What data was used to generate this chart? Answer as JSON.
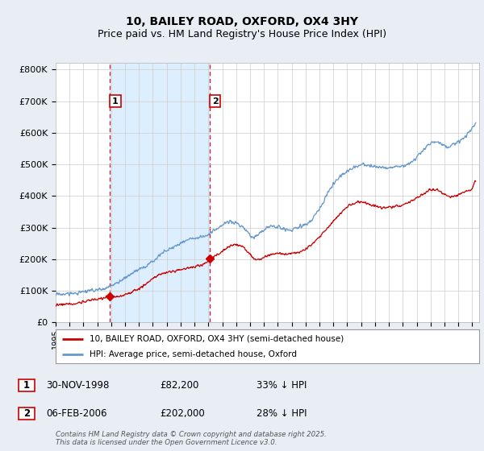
{
  "title": "10, BAILEY ROAD, OXFORD, OX4 3HY",
  "subtitle": "Price paid vs. HM Land Registry's House Price Index (HPI)",
  "title_fontsize": 10,
  "subtitle_fontsize": 9,
  "background_color": "#e8eef4",
  "plot_background": "#ffffff",
  "grid_color": "#cccccc",
  "red_line_color": "#cc0000",
  "blue_line_color": "#6699cc",
  "shade_color": "#ddeeff",
  "ylabel_ticks": [
    "£0",
    "£100K",
    "£200K",
    "£300K",
    "£400K",
    "£500K",
    "£600K",
    "£700K",
    "£800K"
  ],
  "ytick_values": [
    0,
    100000,
    200000,
    300000,
    400000,
    500000,
    600000,
    700000,
    800000
  ],
  "ylim": [
    0,
    820000
  ],
  "xlim_start": 1995.0,
  "xlim_end": 2025.5,
  "transaction1_x": 1998.92,
  "transaction1_y": 82200,
  "transaction1_label": "1",
  "transaction1_date": "30-NOV-1998",
  "transaction1_price": "£82,200",
  "transaction1_hpi": "33% ↓ HPI",
  "transaction2_x": 2006.1,
  "transaction2_y": 202000,
  "transaction2_label": "2",
  "transaction2_date": "06-FEB-2006",
  "transaction2_price": "£202,000",
  "transaction2_hpi": "28% ↓ HPI",
  "legend_line1": "10, BAILEY ROAD, OXFORD, OX4 3HY (semi-detached house)",
  "legend_line2": "HPI: Average price, semi-detached house, Oxford",
  "footer": "Contains HM Land Registry data © Crown copyright and database right 2025.\nThis data is licensed under the Open Government Licence v3.0.",
  "xtick_years": [
    1995,
    1996,
    1997,
    1998,
    1999,
    2000,
    2001,
    2002,
    2003,
    2004,
    2005,
    2006,
    2007,
    2008,
    2009,
    2010,
    2011,
    2012,
    2013,
    2014,
    2015,
    2016,
    2017,
    2018,
    2019,
    2020,
    2021,
    2022,
    2023,
    2024,
    2025
  ]
}
